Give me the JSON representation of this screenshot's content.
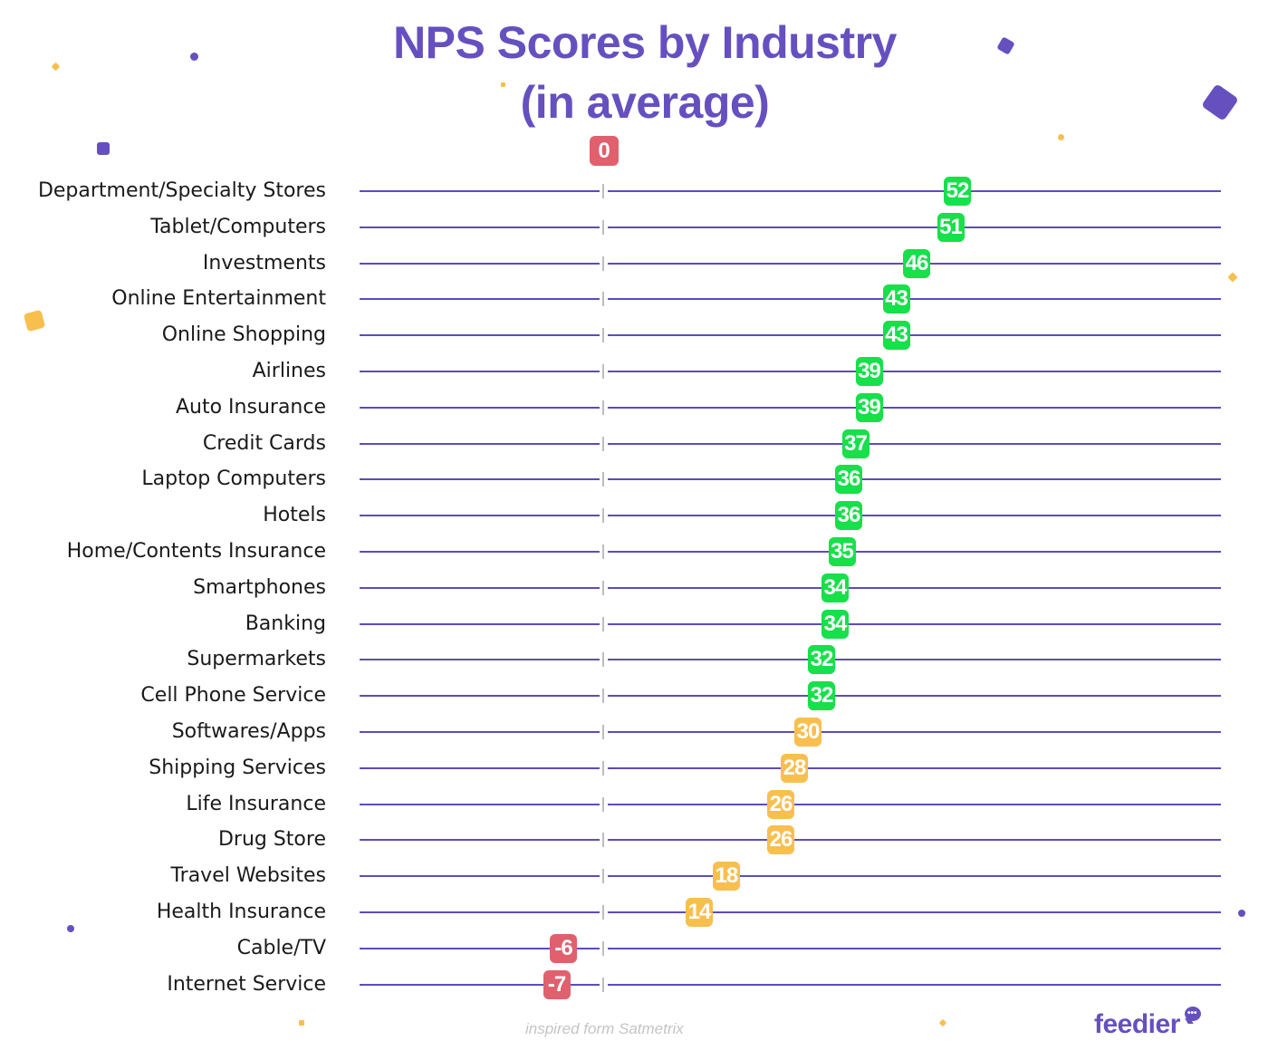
{
  "title": {
    "line1": "NPS Scores by Industry",
    "line2": "(in average)"
  },
  "zero_marker": {
    "label": "0",
    "color": "#e0606e"
  },
  "colors": {
    "title": "#6650c0",
    "line": "#5b4cc0",
    "tick": "#bdbdbd",
    "high": "#16e04a",
    "mid": "#f8bf4f",
    "negative": "#e0606e",
    "deco_purple": "#6650c0",
    "deco_yellow": "#f8bf4f"
  },
  "footer": {
    "credit": "inspired form Satmetrix",
    "logo": "feedier",
    "logo_icon": "chat-bubble-icon",
    "logo_dots": "•••"
  },
  "chart_data": {
    "type": "dot-plot",
    "title": "NPS Scores by Industry (in average)",
    "xlabel": "",
    "ylabel": "",
    "xlim": [
      -36,
      91
    ],
    "zero_line": 0,
    "grid": false,
    "legend": null,
    "color_rule": {
      "green": ">= 32",
      "yellow": "0 to 31",
      "red": "< 0"
    },
    "categories": [
      "Department/Specialty Stores",
      "Tablet/Computers",
      "Investments",
      "Online Entertainment",
      "Online Shopping",
      "Airlines",
      "Auto Insurance",
      "Credit Cards",
      "Laptop Computers",
      "Hotels",
      "Home/Contents Insurance",
      "Smartphones",
      "Banking",
      "Supermarkets",
      "Cell Phone Service",
      "Softwares/Apps",
      "Shipping Services",
      "Life Insurance",
      "Drug Store",
      "Travel Websites",
      "Health Insurance",
      "Cable/TV",
      "Internet Service"
    ],
    "values": [
      52,
      51,
      46,
      43,
      43,
      39,
      39,
      37,
      36,
      36,
      35,
      34,
      34,
      32,
      32,
      30,
      28,
      26,
      26,
      18,
      14,
      -6,
      -7
    ],
    "labels": [
      "52",
      "51",
      "46",
      "43",
      "43",
      "39",
      "39",
      "37",
      "36",
      "36",
      "35",
      "34",
      "34",
      "32",
      "32",
      "30",
      "28",
      "26",
      "26",
      "18",
      "14",
      "-6",
      "-7"
    ]
  }
}
